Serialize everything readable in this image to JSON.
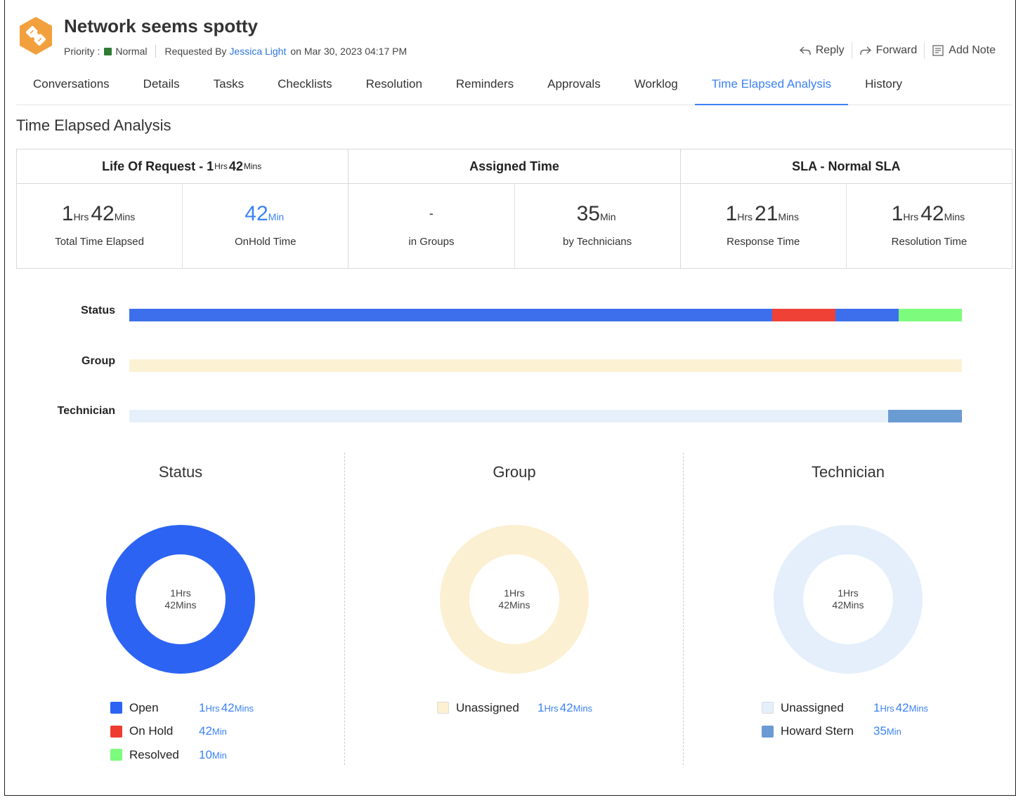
{
  "header": {
    "title": "Network seems spotty",
    "priority_label": "Priority :",
    "priority_value": "Normal",
    "requested_by_label": "Requested By",
    "requester": "Jessica Light",
    "requested_on": "on Mar 30, 2023 04:17 PM",
    "actions": {
      "reply": "Reply",
      "forward": "Forward",
      "add_note": "Add Note"
    }
  },
  "tabs": [
    "Conversations",
    "Details",
    "Tasks",
    "Checklists",
    "Resolution",
    "Reminders",
    "Approvals",
    "Worklog",
    "Time Elapsed Analysis",
    "History"
  ],
  "active_tab": "Time Elapsed Analysis",
  "section_title": "Time Elapsed Analysis",
  "summary": {
    "life": {
      "prefix": "Life Of Request - ",
      "h": "1",
      "h_unit": "Hrs",
      "m": "42",
      "m_unit": "Mins"
    },
    "assigned_title": "Assigned Time",
    "sla_title": "SLA - Normal SLA",
    "cells": [
      {
        "h": "1",
        "h_unit": "Hrs",
        "m": "42",
        "m_unit": "Mins",
        "caption": "Total Time Elapsed"
      },
      {
        "m": "42",
        "m_unit": "Min",
        "caption": "OnHold Time"
      },
      {
        "dash": "-",
        "caption": "in Groups"
      },
      {
        "m": "35",
        "m_unit": "Min",
        "caption": "by Technicians"
      },
      {
        "h": "1",
        "h_unit": "Hrs",
        "m": "21",
        "m_unit": "Mins",
        "caption": "Response Time"
      },
      {
        "h": "1",
        "h_unit": "Hrs",
        "m": "42",
        "m_unit": "Mins",
        "caption": "Resolution Time"
      }
    ]
  },
  "timeline": {
    "labels": {
      "status": "Status",
      "group": "Group",
      "technician": "Technician"
    },
    "status_segments": [
      {
        "name": "Open",
        "fraction": 0.772,
        "color": "#3d6fec"
      },
      {
        "name": "On Hold",
        "fraction": 0.076,
        "color": "#ef4136"
      },
      {
        "name": "Open",
        "fraction": 0.076,
        "color": "#3d6fec"
      },
      {
        "name": "Resolved",
        "fraction": 0.076,
        "color": "#7dfb7d"
      }
    ],
    "group_segments": [
      {
        "name": "Unassigned",
        "fraction": 1.0,
        "color": "#fbf1d3"
      }
    ],
    "technician_segments": [
      {
        "name": "Unassigned",
        "fraction": 0.911,
        "color": "#e6f0fb"
      },
      {
        "name": "Howard Stern",
        "fraction": 0.089,
        "color": "#6a9bd3"
      }
    ]
  },
  "donuts": [
    {
      "title": "Status",
      "center_line1": "1Hrs",
      "center_line2": "42Mins",
      "ring": [
        {
          "fraction": 1.0,
          "color": "#2c63f3"
        }
      ],
      "legend": [
        {
          "name": "Open",
          "color": "#2c63f3",
          "h": "1",
          "h_unit": "Hrs",
          "m": "42",
          "m_unit": "Mins"
        },
        {
          "name": "On Hold",
          "color": "#ef3b2f",
          "m": "42",
          "m_unit": "Min"
        },
        {
          "name": "Resolved",
          "color": "#7dfb7d",
          "m": "10",
          "m_unit": "Min"
        }
      ]
    },
    {
      "title": "Group",
      "center_line1": "1Hrs",
      "center_line2": "42Mins",
      "ring": [
        {
          "fraction": 1.0,
          "color": "#fcf0d2"
        }
      ],
      "legend": [
        {
          "name": "Unassigned",
          "color": "#fcf0d2",
          "h": "1",
          "h_unit": "Hrs",
          "m": "42",
          "m_unit": "Mins"
        }
      ]
    },
    {
      "title": "Technician",
      "center_line1": "1Hrs",
      "center_line2": "42Mins",
      "ring": [
        {
          "fraction": 1.0,
          "color": "#e4effb"
        }
      ],
      "legend": [
        {
          "name": "Unassigned",
          "color": "#e4effb",
          "h": "1",
          "h_unit": "Hrs",
          "m": "42",
          "m_unit": "Mins"
        },
        {
          "name": "Howard Stern",
          "color": "#6a9bd3",
          "m": "35",
          "m_unit": "Min"
        }
      ]
    }
  ],
  "colors": {
    "accent": "#3b82f6",
    "logo": "#f2a03d",
    "priority_normal": "#2e7d32"
  },
  "icons": {
    "logo": "ticket-icon",
    "reply": "reply-icon",
    "forward": "forward-icon",
    "add_note": "note-icon"
  }
}
